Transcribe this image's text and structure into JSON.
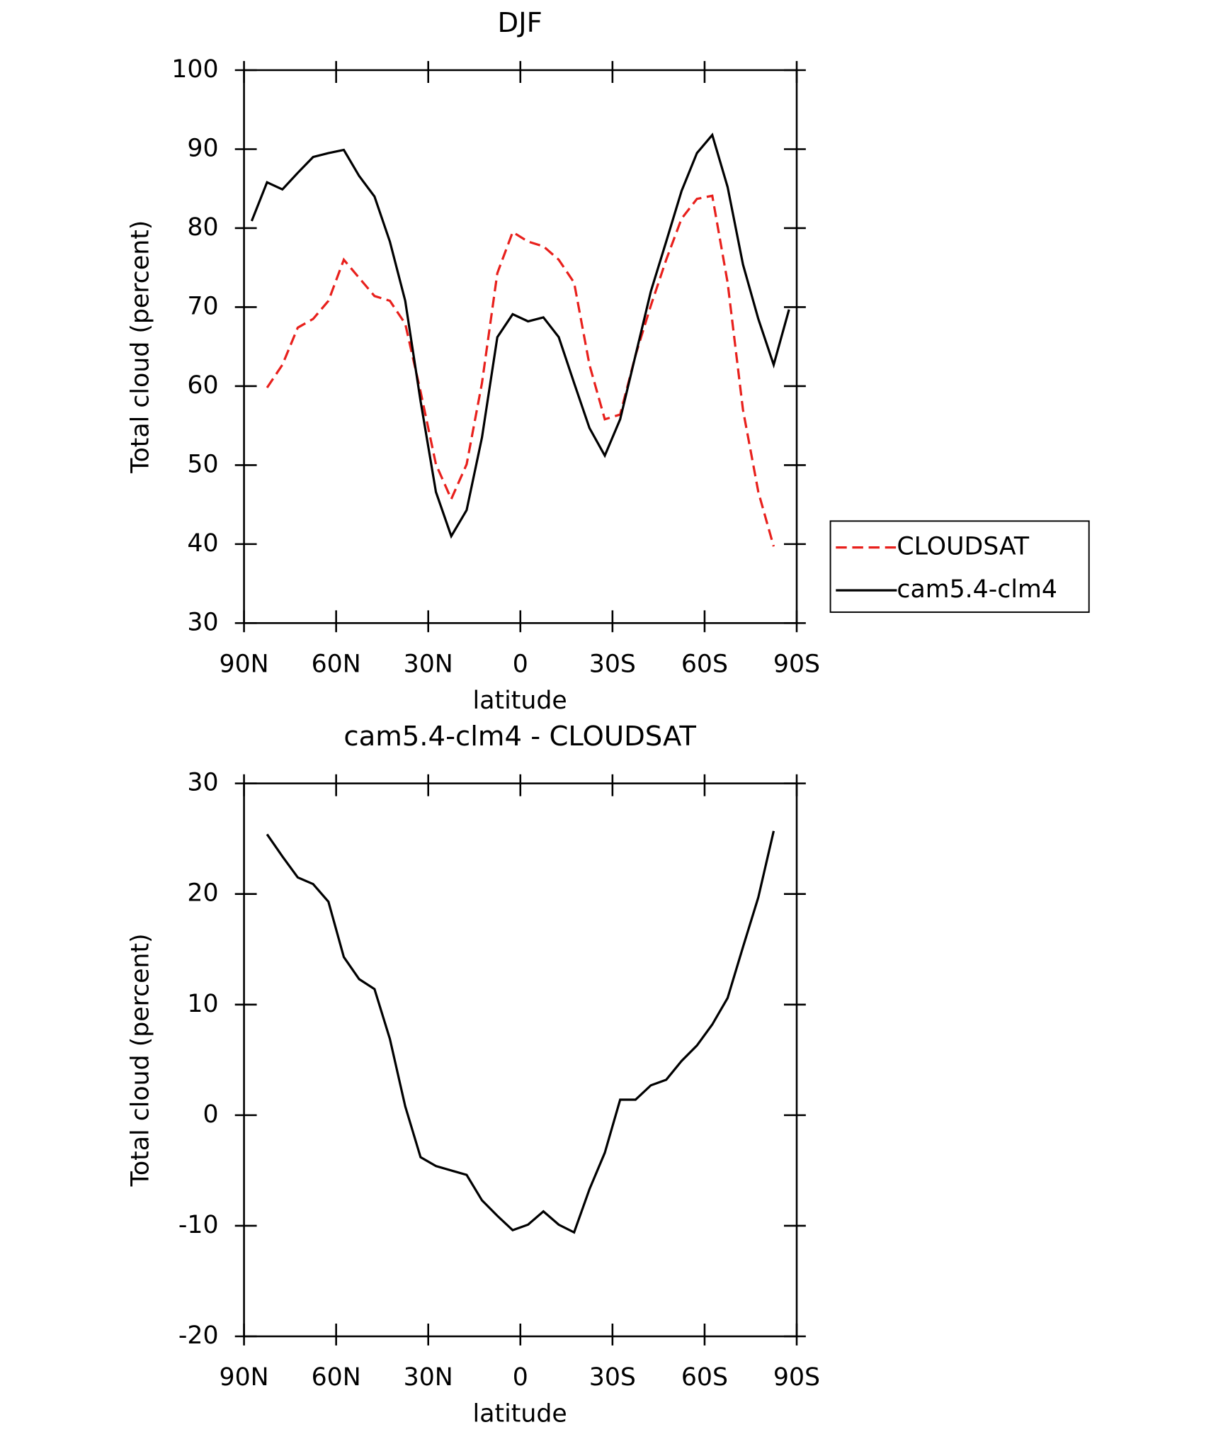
{
  "chart_data": [
    {
      "type": "line",
      "title": "DJF",
      "x_label": "latitude",
      "y_label": "Total cloud (percent)",
      "x": [
        87.5,
        82.5,
        77.5,
        72.5,
        67.5,
        62.5,
        57.5,
        52.5,
        47.5,
        42.5,
        37.5,
        32.5,
        27.5,
        22.5,
        17.5,
        12.5,
        7.5,
        2.5,
        -2.5,
        -7.5,
        -12.5,
        -17.5,
        -22.5,
        -27.5,
        -32.5,
        -37.5,
        -42.5,
        -47.5,
        -52.5,
        -57.5,
        -62.5,
        -67.5,
        -72.5,
        -77.5,
        -82.5,
        -87.5
      ],
      "series": [
        {
          "name": "CLOUDSAT",
          "color": "#e8201c",
          "dash": true,
          "values": [
            null,
            59.8,
            62.7,
            67.4,
            68.5,
            70.8,
            76,
            73.7,
            71.4,
            70.8,
            67.9,
            59.3,
            50.1,
            45.7,
            50.1,
            60.4,
            74.3,
            79.5,
            78.3,
            77.7,
            76,
            73.1,
            62.7,
            55.8,
            56.4,
            63.9,
            70.2,
            76,
            81.2,
            83.7,
            84.1,
            73.1,
            57,
            46.6,
            39.7,
            null
          ]
        },
        {
          "name": "cam5.4-clm4",
          "color": "#000000",
          "dash": false,
          "values": [
            80.9,
            85.8,
            84.9,
            87,
            89,
            89.5,
            89.9,
            86.6,
            84,
            78.3,
            70.8,
            58.1,
            46.6,
            41,
            44.3,
            53.5,
            66.2,
            69.1,
            68.2,
            68.7,
            66.2,
            60.4,
            54.7,
            51.2,
            55.8,
            63.9,
            72,
            78.3,
            84.7,
            89.5,
            91.8,
            85.2,
            75.4,
            68.5,
            62.7,
            69.7
          ]
        }
      ],
      "xlim": [
        90,
        -90
      ],
      "xticks": [
        {
          "value": 90,
          "label": "90N"
        },
        {
          "value": 60,
          "label": "60N"
        },
        {
          "value": 30,
          "label": "30N"
        },
        0,
        {
          "value": -30,
          "label": "30S"
        },
        {
          "value": -60,
          "label": "60S"
        },
        {
          "value": -90,
          "label": "90S"
        }
      ],
      "ylim": [
        30,
        100
      ],
      "yticks": [
        30,
        40,
        50,
        60,
        70,
        80,
        90,
        100
      ],
      "grid": false,
      "legend": "right"
    },
    {
      "type": "line",
      "title": "cam5.4-clm4 - CLOUDSAT",
      "x_label": "latitude",
      "y_label": "Total cloud (percent)",
      "x": [
        87.5,
        82.5,
        77.5,
        72.5,
        67.5,
        62.5,
        57.5,
        52.5,
        47.5,
        42.5,
        37.5,
        32.5,
        27.5,
        22.5,
        17.5,
        12.5,
        7.5,
        2.5,
        -2.5,
        -7.5,
        -12.5,
        -17.5,
        -22.5,
        -27.5,
        -32.5,
        -37.5,
        -42.5,
        -47.5,
        -52.5,
        -57.5,
        -62.5,
        -67.5,
        -72.5,
        -77.5,
        -82.5,
        -87.5
      ],
      "series": [
        {
          "color": "#000000",
          "dash": false,
          "values": [
            null,
            25.4,
            23.4,
            21.5,
            20.9,
            19.3,
            14.3,
            12.3,
            11.4,
            6.9,
            0.8,
            -3.8,
            -4.6,
            -5,
            -5.4,
            -7.7,
            -9.1,
            -10.4,
            -9.9,
            -8.7,
            -9.9,
            -10.6,
            -6.7,
            -3.4,
            1.4,
            1.4,
            2.7,
            3.2,
            4.9,
            6.3,
            8.2,
            10.6,
            15.2,
            19.7,
            25.7,
            null
          ]
        }
      ],
      "xlim": [
        90,
        -90
      ],
      "xticks": [
        {
          "value": 90,
          "label": "90N"
        },
        {
          "value": 60,
          "label": "60N"
        },
        {
          "value": 30,
          "label": "30N"
        },
        0,
        {
          "value": -30,
          "label": "30S"
        },
        {
          "value": -60,
          "label": "60S"
        },
        {
          "value": -90,
          "label": "90S"
        }
      ],
      "ylim": [
        -20,
        30
      ],
      "yticks": [
        -20,
        -10,
        0,
        10,
        20,
        30
      ],
      "grid": false
    }
  ]
}
